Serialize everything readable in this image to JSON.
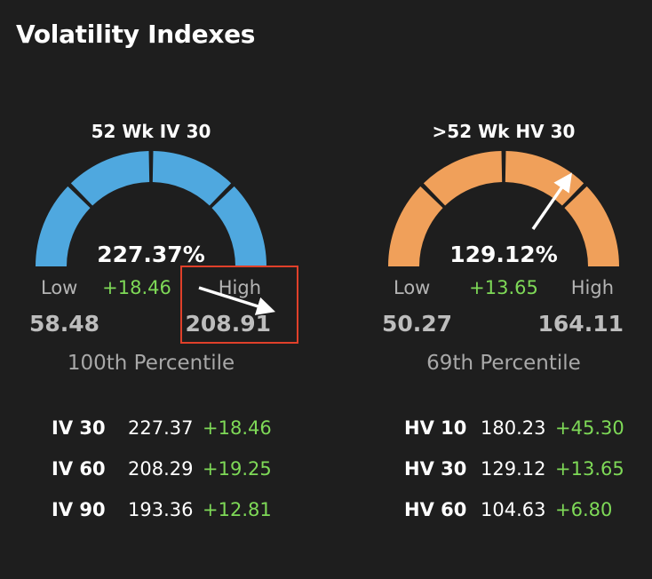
{
  "page_title": "Volatility Indexes",
  "colors": {
    "background": "#1e1e1e",
    "iv_gauge": "#4fa8df",
    "hv_gauge": "#f0a05a",
    "positive": "#7ed957",
    "muted": "#b4b4b4",
    "highlight": "#e0402a"
  },
  "panels": [
    {
      "title": "52 Wk IV 30",
      "value": "227.37%",
      "low_label": "Low",
      "change": "+18.46",
      "high_label": "High",
      "low_value": "58.48",
      "high_value": "208.91",
      "percentile": "100th Percentile",
      "gauge_color": "#4fa8df",
      "percentile_level": 1.0,
      "stats": [
        {
          "name": "IV 30",
          "value": "227.37",
          "change": "+18.46"
        },
        {
          "name": "IV 60",
          "value": "208.29",
          "change": "+19.25"
        },
        {
          "name": "IV 90",
          "value": "193.36",
          "change": "+12.81"
        }
      ]
    },
    {
      "title": ">52 Wk HV 30",
      "value": "129.12%",
      "low_label": "Low",
      "change": "+13.65",
      "high_label": "High",
      "low_value": "50.27",
      "high_value": "164.11",
      "percentile": "69th Percentile",
      "gauge_color": "#f0a05a",
      "percentile_level": 0.69,
      "stats": [
        {
          "name": "HV 10",
          "value": "180.23",
          "change": "+45.30"
        },
        {
          "name": "HV 30",
          "value": "129.12",
          "change": "+13.65"
        },
        {
          "name": "HV 60",
          "value": "104.63",
          "change": "+6.80"
        }
      ]
    }
  ]
}
